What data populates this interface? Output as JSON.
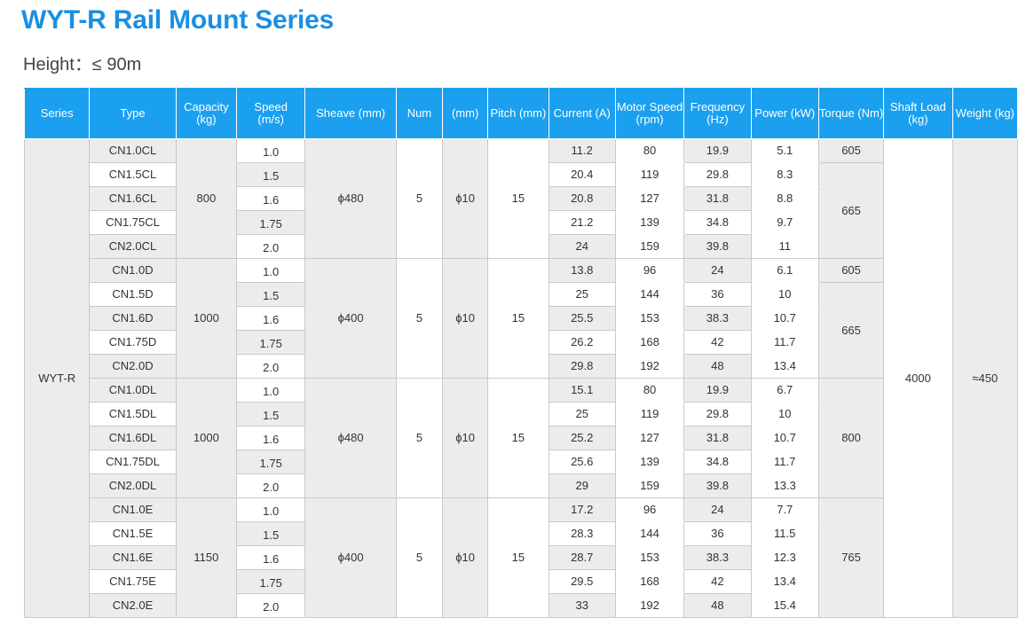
{
  "title": "WYT-R Rail Mount Series",
  "subtitle": "Height：≤ 90m",
  "headers": [
    "Series",
    "Type",
    "Capacity|(kg)",
    "Speed|(m/s)",
    "Sheave (mm)",
    "Num",
    "(mm)",
    "Pitch (mm)",
    "Current (A)",
    "Motor Speed|(rpm)",
    "Frequency|(Hz)",
    "Power (kW)",
    "Torque (Nm)",
    "Shaft Load|(kg)",
    "Weight (kg)"
  ],
  "series": "WYT-R",
  "shaft_load": "4000",
  "weight": "≈450",
  "groups": [
    {
      "capacity": "800",
      "sheave": "ϕ480",
      "num": "5",
      "rope": "ϕ10",
      "pitch": "15",
      "torque": [
        [
          "605",
          1
        ],
        [
          "665",
          4
        ]
      ],
      "rows": [
        {
          "type": "CN1.0CL",
          "speed": "1.0",
          "current": "11.2",
          "motor_speed": "80",
          "frequency": "19.9",
          "power": "5.1"
        },
        {
          "type": "CN1.5CL",
          "speed": "1.5",
          "current": "20.4",
          "motor_speed": "119",
          "frequency": "29.8",
          "power": "8.3"
        },
        {
          "type": "CN1.6CL",
          "speed": "1.6",
          "current": "20.8",
          "motor_speed": "127",
          "frequency": "31.8",
          "power": "8.8"
        },
        {
          "type": "CN1.75CL",
          "speed": "1.75",
          "current": "21.2",
          "motor_speed": "139",
          "frequency": "34.8",
          "power": "9.7"
        },
        {
          "type": "CN2.0CL",
          "speed": "2.0",
          "current": "24",
          "motor_speed": "159",
          "frequency": "39.8",
          "power": "11"
        }
      ]
    },
    {
      "capacity": "1000",
      "sheave": "ϕ400",
      "num": "5",
      "rope": "ϕ10",
      "pitch": "15",
      "torque": [
        [
          "605",
          1
        ],
        [
          "665",
          4
        ]
      ],
      "rows": [
        {
          "type": "CN1.0D",
          "speed": "1.0",
          "current": "13.8",
          "motor_speed": "96",
          "frequency": "24",
          "power": "6.1"
        },
        {
          "type": "CN1.5D",
          "speed": "1.5",
          "current": "25",
          "motor_speed": "144",
          "frequency": "36",
          "power": "10"
        },
        {
          "type": "CN1.6D",
          "speed": "1.6",
          "current": "25.5",
          "motor_speed": "153",
          "frequency": "38.3",
          "power": "10.7"
        },
        {
          "type": "CN1.75D",
          "speed": "1.75",
          "current": "26.2",
          "motor_speed": "168",
          "frequency": "42",
          "power": "11.7"
        },
        {
          "type": "CN2.0D",
          "speed": "2.0",
          "current": "29.8",
          "motor_speed": "192",
          "frequency": "48",
          "power": "13.4"
        }
      ]
    },
    {
      "capacity": "1000",
      "sheave": "ϕ480",
      "num": "5",
      "rope": "ϕ10",
      "pitch": "15",
      "torque": [
        [
          "800",
          5
        ]
      ],
      "rows": [
        {
          "type": "CN1.0DL",
          "speed": "1.0",
          "current": "15.1",
          "motor_speed": "80",
          "frequency": "19.9",
          "power": "6.7"
        },
        {
          "type": "CN1.5DL",
          "speed": "1.5",
          "current": "25",
          "motor_speed": "119",
          "frequency": "29.8",
          "power": "10"
        },
        {
          "type": "CN1.6DL",
          "speed": "1.6",
          "current": "25.2",
          "motor_speed": "127",
          "frequency": "31.8",
          "power": "10.7"
        },
        {
          "type": "CN1.75DL",
          "speed": "1.75",
          "current": "25.6",
          "motor_speed": "139",
          "frequency": "34.8",
          "power": "11.7"
        },
        {
          "type": "CN2.0DL",
          "speed": "2.0",
          "current": "29",
          "motor_speed": "159",
          "frequency": "39.8",
          "power": "13.3"
        }
      ]
    },
    {
      "capacity": "1150",
      "sheave": "ϕ400",
      "num": "5",
      "rope": "ϕ10",
      "pitch": "15",
      "torque": [
        [
          "765",
          5
        ]
      ],
      "rows": [
        {
          "type": "CN1.0E",
          "speed": "1.0",
          "current": "17.2",
          "motor_speed": "96",
          "frequency": "24",
          "power": "7.7"
        },
        {
          "type": "CN1.5E",
          "speed": "1.5",
          "current": "28.3",
          "motor_speed": "144",
          "frequency": "36",
          "power": "11.5"
        },
        {
          "type": "CN1.6E",
          "speed": "1.6",
          "current": "28.7",
          "motor_speed": "153",
          "frequency": "38.3",
          "power": "12.3"
        },
        {
          "type": "CN1.75E",
          "speed": "1.75",
          "current": "29.5",
          "motor_speed": "168",
          "frequency": "42",
          "power": "13.4"
        },
        {
          "type": "CN2.0E",
          "speed": "2.0",
          "current": "33",
          "motor_speed": "192",
          "frequency": "48",
          "power": "15.4"
        }
      ]
    }
  ]
}
